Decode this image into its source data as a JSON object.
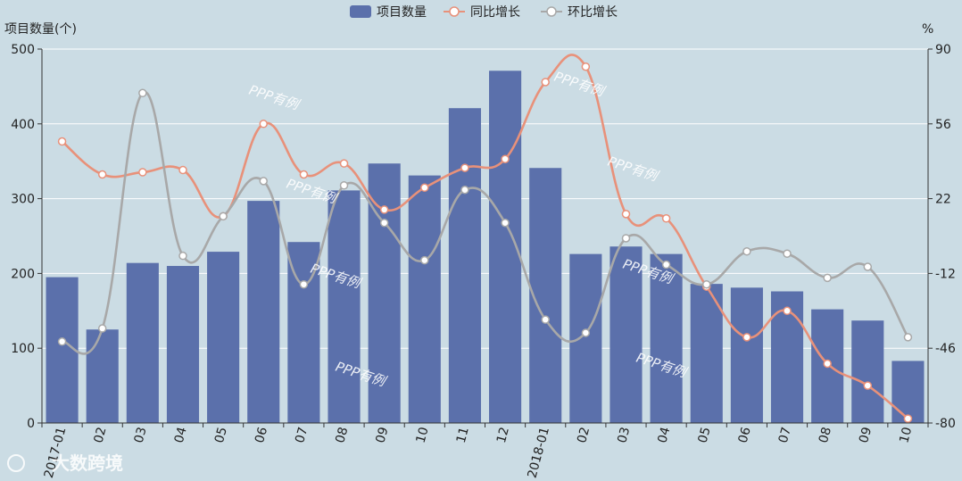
{
  "colors": {
    "background": "#cbdce4",
    "bar": "#5b70ab",
    "yoy": "#e8917a",
    "mom": "#a8a8a8",
    "grid": "#ffffff",
    "axis": "#333333"
  },
  "chart_data": {
    "type": "bar+line",
    "left_axis_label": "项目数量(个)",
    "right_axis_label": "%",
    "left_ylim": [
      0,
      500
    ],
    "left_ticks": [
      0,
      100,
      200,
      300,
      400,
      500
    ],
    "right_ylim": [
      -80,
      90
    ],
    "right_ticks": [
      -80,
      -46,
      -12,
      22,
      56,
      90
    ],
    "grid": true,
    "legend_position": "top-center",
    "categories": [
      "2017-01",
      "02",
      "03",
      "04",
      "05",
      "06",
      "07",
      "08",
      "09",
      "10",
      "11",
      "12",
      "2018-01",
      "02",
      "03",
      "04",
      "05",
      "06",
      "07",
      "08",
      "09",
      "10"
    ],
    "series": [
      {
        "name": "项目数量",
        "kind": "bar",
        "axis": "left",
        "values": [
          195,
          125,
          214,
          210,
          229,
          297,
          242,
          311,
          347,
          331,
          421,
          471,
          341,
          226,
          236,
          226,
          186,
          181,
          176,
          152,
          137,
          83
        ]
      },
      {
        "name": "同比增长",
        "kind": "line",
        "axis": "right",
        "values": [
          48,
          33,
          34,
          35,
          14,
          56,
          33,
          38,
          17,
          27,
          36,
          40,
          75,
          82,
          15,
          13,
          -18,
          -41,
          -29,
          -53,
          -63,
          -78
        ]
      },
      {
        "name": "环比增长",
        "kind": "line",
        "axis": "right",
        "values": [
          -43,
          -37,
          70,
          -4,
          14,
          30,
          -17,
          28,
          11,
          -6,
          26,
          11,
          -33,
          -39,
          4,
          -8,
          -17,
          -2,
          -3,
          -14,
          -9,
          -41
        ]
      }
    ]
  },
  "watermarks": {
    "text": "PPP有例",
    "logo_text": "大数跨境"
  }
}
